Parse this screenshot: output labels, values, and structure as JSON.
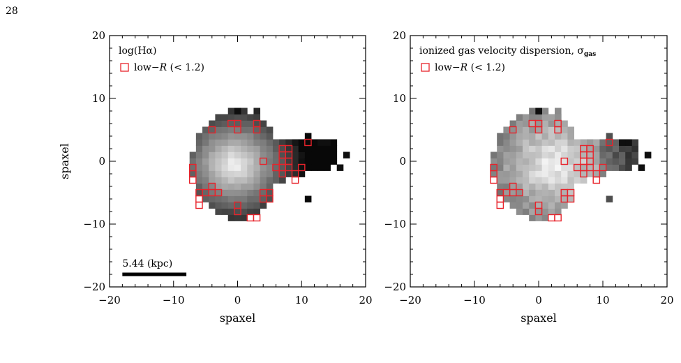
{
  "page": {
    "number": "28"
  },
  "colors": {
    "marker": "#e8232b",
    "frame": "#000000",
    "scalebar": "#000000"
  },
  "chart_data": [
    {
      "type": "heatmap",
      "title": "log(Hα)",
      "xlabel": "spaxel",
      "ylabel": "spaxel",
      "xlim": [
        -20,
        20
      ],
      "ylim": [
        -20,
        20
      ],
      "xticks": [
        "−20",
        "−10",
        "0",
        "10",
        "20"
      ],
      "yticks": [
        "−20",
        "−10",
        "0",
        "10",
        "20"
      ],
      "colormap": "grayscale",
      "legend": {
        "label_prefix": "low−",
        "label_var": "R",
        "label_suffix": " (< 1.2)",
        "marker": "open-square",
        "placement": "top-left"
      },
      "scale_bar": {
        "label": "5.44 (kpc)",
        "x_start": -18,
        "x_end": -8,
        "y": -18
      },
      "low_R_spaxels": [
        [
          -4,
          5
        ],
        [
          -1,
          6
        ],
        [
          0,
          6
        ],
        [
          3,
          6
        ],
        [
          0,
          5
        ],
        [
          3,
          5
        ],
        [
          -7,
          -1
        ],
        [
          -7,
          -2
        ],
        [
          -7,
          -3
        ],
        [
          -4,
          -4
        ],
        [
          -4,
          -5
        ],
        [
          -5,
          -5
        ],
        [
          -3,
          -5
        ],
        [
          -6,
          -5
        ],
        [
          -6,
          -6
        ],
        [
          -6,
          -7
        ],
        [
          0,
          -7
        ],
        [
          0,
          -8
        ],
        [
          4,
          -5
        ],
        [
          5,
          -5
        ],
        [
          4,
          -6
        ],
        [
          5,
          -6
        ],
        [
          2,
          -9
        ],
        [
          3,
          -9
        ],
        [
          4,
          0
        ],
        [
          6,
          -1
        ],
        [
          7,
          -1
        ],
        [
          7,
          0
        ],
        [
          7,
          1
        ],
        [
          7,
          2
        ],
        [
          8,
          2
        ],
        [
          8,
          1
        ],
        [
          8,
          0
        ],
        [
          8,
          -1
        ],
        [
          7,
          -2
        ],
        [
          9,
          -2
        ],
        [
          9,
          -3
        ],
        [
          10,
          -1
        ],
        [
          11,
          3
        ]
      ]
    },
    {
      "type": "heatmap",
      "title": "ionized gas velocity dispersion, σ",
      "title_sub": "gas",
      "xlabel": "spaxel",
      "ylabel": "",
      "xlim": [
        -20,
        20
      ],
      "ylim": [
        -20,
        20
      ],
      "xticks": [
        "−20",
        "−10",
        "0",
        "10",
        "20"
      ],
      "yticks": [
        "−20",
        "−10",
        "0",
        "10",
        "20"
      ],
      "colormap": "grayscale",
      "legend": {
        "label_prefix": "low−",
        "label_var": "R",
        "label_suffix": " (< 1.2)",
        "marker": "open-square",
        "placement": "top-left"
      },
      "low_R_spaxels": [
        [
          -4,
          5
        ],
        [
          -1,
          6
        ],
        [
          0,
          6
        ],
        [
          3,
          6
        ],
        [
          0,
          5
        ],
        [
          3,
          5
        ],
        [
          -7,
          -1
        ],
        [
          -7,
          -2
        ],
        [
          -7,
          -3
        ],
        [
          -4,
          -4
        ],
        [
          -4,
          -5
        ],
        [
          -5,
          -5
        ],
        [
          -3,
          -5
        ],
        [
          -6,
          -5
        ],
        [
          -6,
          -6
        ],
        [
          -6,
          -7
        ],
        [
          0,
          -7
        ],
        [
          0,
          -8
        ],
        [
          4,
          -5
        ],
        [
          5,
          -5
        ],
        [
          4,
          -6
        ],
        [
          5,
          -6
        ],
        [
          2,
          -9
        ],
        [
          3,
          -9
        ],
        [
          4,
          0
        ],
        [
          6,
          -1
        ],
        [
          7,
          -1
        ],
        [
          7,
          0
        ],
        [
          7,
          1
        ],
        [
          7,
          2
        ],
        [
          8,
          2
        ],
        [
          8,
          1
        ],
        [
          8,
          0
        ],
        [
          8,
          -1
        ],
        [
          7,
          -2
        ],
        [
          9,
          -2
        ],
        [
          9,
          -3
        ],
        [
          10,
          -1
        ],
        [
          11,
          3
        ]
      ]
    }
  ]
}
